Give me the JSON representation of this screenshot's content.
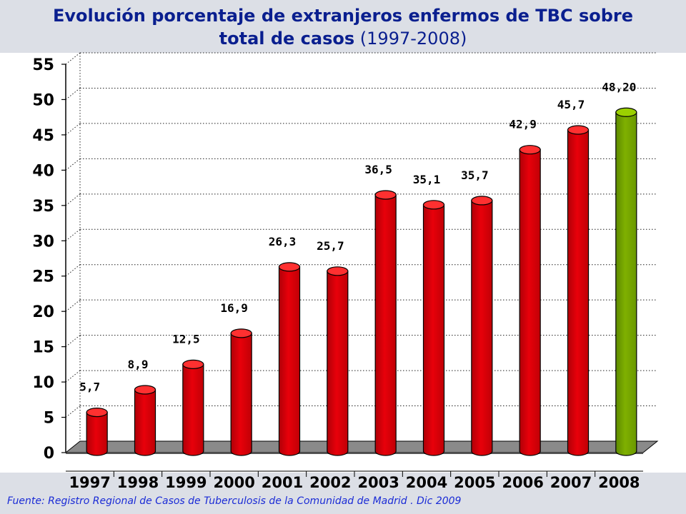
{
  "title_line1": "Evolución porcentaje de extranjeros   enfermos  de TBC sobre",
  "title_line2_bold": "total de casos",
  "title_line2_normal": " (1997-2008)",
  "source": "Fuente: Registro Regional de Casos de Tuberculosis de la Comunidad de Madrid . Dic 2009",
  "colors": {
    "bar_red": "#e8000a",
    "bar_highlight": "#7fb000",
    "floor": "#8a8a8a",
    "title": "#0a1f8f",
    "source": "#1a2bd6"
  },
  "chart_data": {
    "type": "bar",
    "categories": [
      "1997",
      "1998",
      "1999",
      "2000",
      "2001",
      "2002",
      "2003",
      "2004",
      "2005",
      "2006",
      "2007",
      "2008"
    ],
    "values": [
      5.7,
      8.9,
      12.5,
      16.9,
      26.3,
      25.7,
      36.5,
      35.1,
      35.7,
      42.9,
      45.7,
      48.2
    ],
    "data_labels": [
      "5,7",
      "8,9",
      "12,5",
      "16,9",
      "26,3",
      "25,7",
      "36,5",
      "35,1",
      "35,7",
      "42,9",
      "45,7",
      "48,20"
    ],
    "yticks": [
      "0",
      "5",
      "10",
      "15",
      "20",
      "25",
      "30",
      "35",
      "40",
      "45",
      "50",
      "55"
    ],
    "ylim": [
      0,
      55
    ],
    "grid": true,
    "highlight_category": "2008"
  }
}
